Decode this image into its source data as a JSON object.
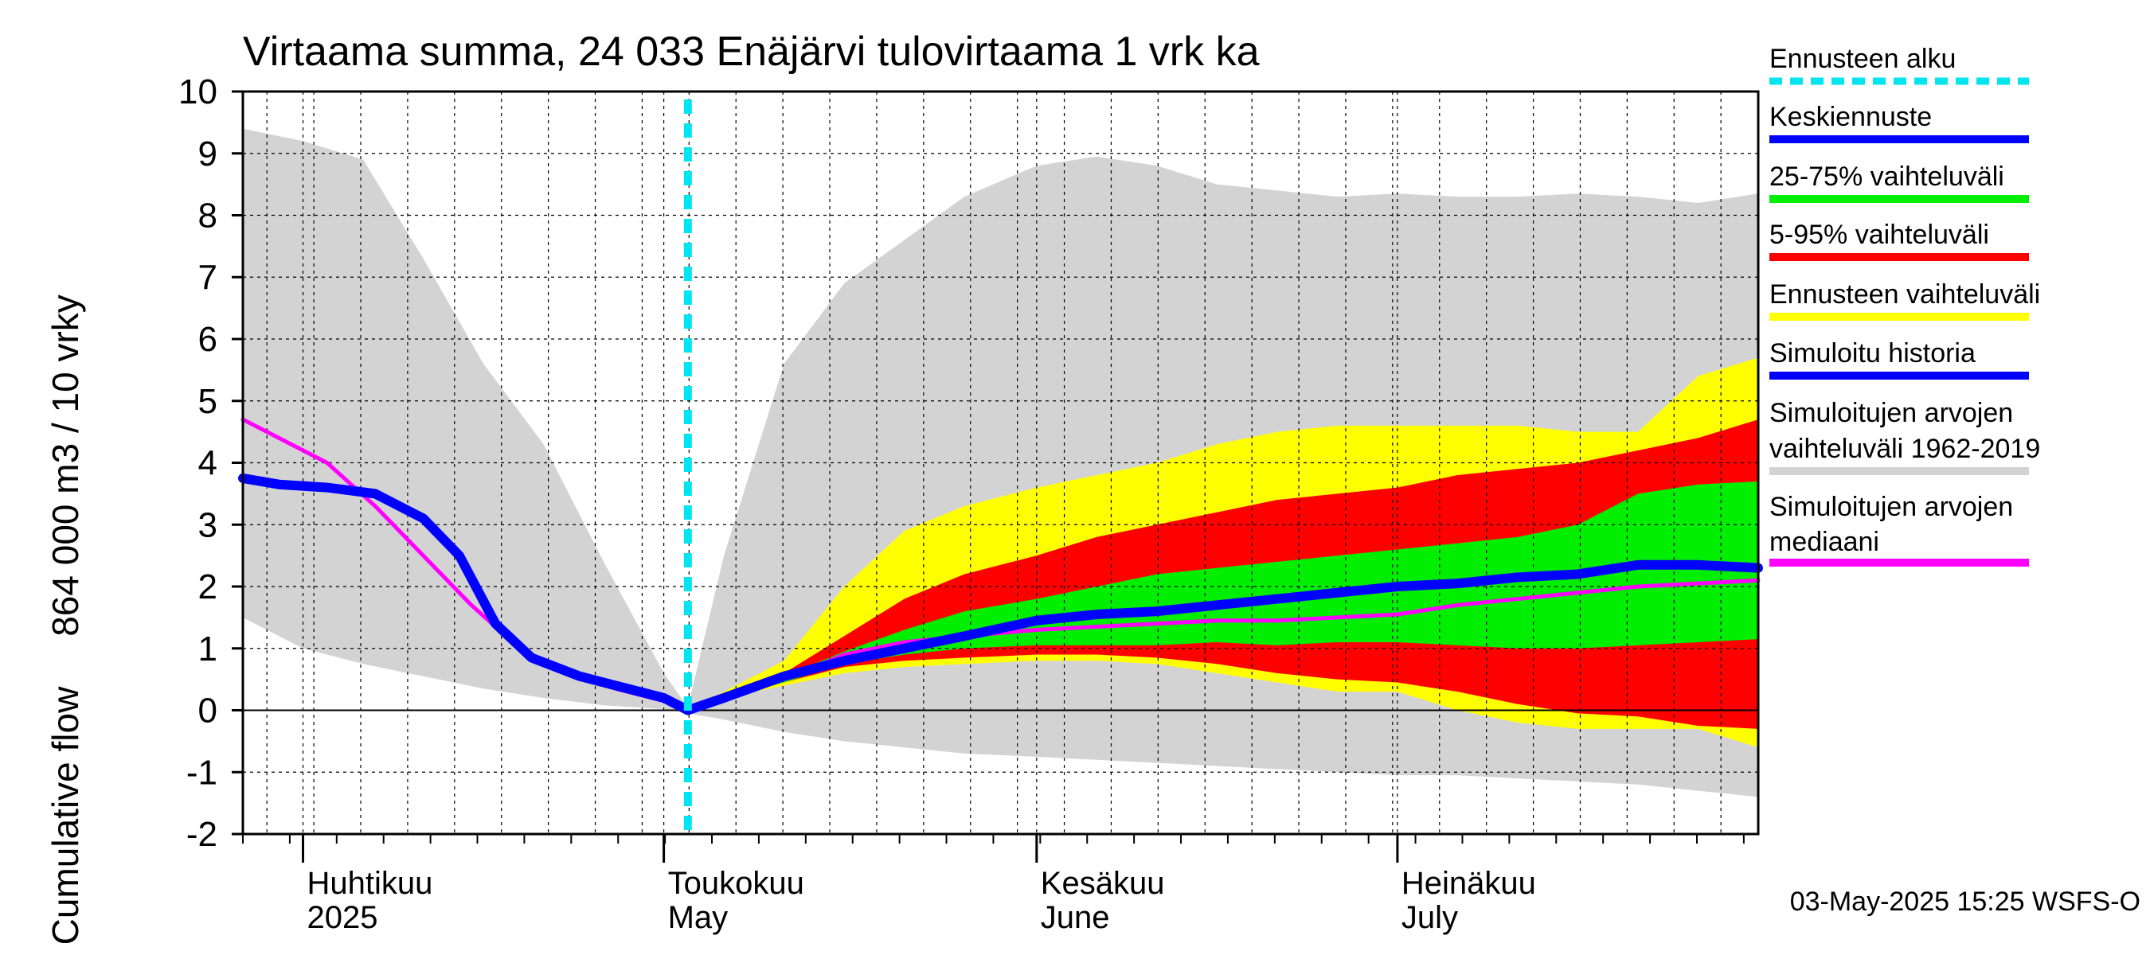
{
  "chart_data": {
    "type": "area",
    "title": "Virtaama summa, 24 033 Enäjärvi tulovirtaama 1 vrk ka",
    "ylabel_top": "864 000 m3 / 10 vrky",
    "ylabel_bottom": "Cumulative flow",
    "ylim": [
      -2,
      10
    ],
    "yticks": [
      "-2",
      "-1",
      "0",
      "1",
      "2",
      "3",
      "4",
      "5",
      "6",
      "7",
      "8",
      "9",
      "10"
    ],
    "x_range": [
      "2025-03-27",
      "2025-07-31"
    ],
    "forecast_start": "2025-05-03",
    "months": [
      {
        "label1": "Huhtikuu",
        "label2": "2025",
        "start": "2025-04-01"
      },
      {
        "label1": "Toukokuu",
        "label2": "May",
        "start": "2025-05-01"
      },
      {
        "label1": "Kesäkuu",
        "label2": "June",
        "start": "2025-06-01"
      },
      {
        "label1": "Heinäkuu",
        "label2": "July",
        "start": "2025-07-01"
      }
    ],
    "grid": true,
    "legend_position": "right",
    "legend": [
      {
        "label": "Ennusteen alku",
        "color": "#00e5ee",
        "style": "dashed"
      },
      {
        "label": "Keskiennuste",
        "color": "#0000ff",
        "style": "line"
      },
      {
        "label": "25-75% vaihteluväli",
        "color": "#00ee00",
        "style": "line"
      },
      {
        "label": "5-95% vaihteluväli",
        "color": "#ff0000",
        "style": "line"
      },
      {
        "label": "Ennusteen vaihteluväli",
        "color": "#ffff00",
        "style": "line"
      },
      {
        "label": "Simuloitu historia",
        "color": "#0000ff",
        "style": "line"
      },
      {
        "label": "Simuloitujen arvojen vaihteluväli 1962-2019",
        "line1": "Simuloitujen arvojen",
        "line2": "vaihteluväli 1962-2019",
        "color": "#d3d3d3",
        "style": "line"
      },
      {
        "label": "Simuloitujen arvojen mediaani",
        "line1": "Simuloitujen arvojen",
        "line2": "mediaani",
        "color": "#ff00ff",
        "style": "line"
      }
    ],
    "series": [
      {
        "name": "Simuloitujen arvojen vaihteluväli 1962-2019",
        "color": "#d3d3d3",
        "kind": "band",
        "x": [
          "2025-03-27",
          "2025-04-01",
          "2025-04-06",
          "2025-04-11",
          "2025-04-16",
          "2025-04-21",
          "2025-04-26",
          "2025-05-01",
          "2025-05-03",
          "2025-05-06",
          "2025-05-11",
          "2025-05-16",
          "2025-05-21",
          "2025-05-26",
          "2025-06-01",
          "2025-06-06",
          "2025-06-11",
          "2025-06-16",
          "2025-06-21",
          "2025-06-26",
          "2025-07-01",
          "2025-07-06",
          "2025-07-11",
          "2025-07-16",
          "2025-07-21",
          "2025-07-26",
          "2025-07-31"
        ],
        "upper": [
          9.4,
          9.2,
          8.9,
          7.3,
          5.6,
          4.3,
          2.4,
          0.6,
          0.05,
          2.5,
          5.6,
          6.9,
          7.6,
          8.3,
          8.8,
          8.95,
          8.8,
          8.5,
          8.4,
          8.3,
          8.35,
          8.3,
          8.3,
          8.35,
          8.3,
          8.2,
          8.35
        ],
        "lower": [
          1.5,
          1.0,
          0.75,
          0.55,
          0.35,
          0.2,
          0.08,
          0.02,
          -0.05,
          -0.15,
          -0.35,
          -0.5,
          -0.6,
          -0.7,
          -0.75,
          -0.8,
          -0.85,
          -0.9,
          -0.95,
          -1.0,
          -1.05,
          -1.05,
          -1.1,
          -1.15,
          -1.2,
          -1.3,
          -1.4
        ]
      },
      {
        "name": "Ennusteen vaihteluväli",
        "color": "#ffff00",
        "kind": "band",
        "x": [
          "2025-05-03",
          "2025-05-06",
          "2025-05-11",
          "2025-05-16",
          "2025-05-21",
          "2025-05-26",
          "2025-06-01",
          "2025-06-06",
          "2025-06-11",
          "2025-06-16",
          "2025-06-21",
          "2025-06-26",
          "2025-07-01",
          "2025-07-06",
          "2025-07-11",
          "2025-07-16",
          "2025-07-21",
          "2025-07-26",
          "2025-07-31"
        ],
        "upper": [
          0.0,
          0.3,
          0.8,
          2.0,
          2.9,
          3.3,
          3.6,
          3.8,
          4.0,
          4.3,
          4.5,
          4.6,
          4.6,
          4.6,
          4.6,
          4.5,
          4.5,
          5.4,
          5.7
        ],
        "lower": [
          0.0,
          0.2,
          0.4,
          0.6,
          0.7,
          0.75,
          0.8,
          0.8,
          0.75,
          0.6,
          0.45,
          0.3,
          0.3,
          0.0,
          -0.2,
          -0.3,
          -0.3,
          -0.3,
          -0.6
        ]
      },
      {
        "name": "5-95% vaihteluväli",
        "color": "#ff0000",
        "kind": "band",
        "x": [
          "2025-05-03",
          "2025-05-06",
          "2025-05-11",
          "2025-05-16",
          "2025-05-21",
          "2025-05-26",
          "2025-06-01",
          "2025-06-06",
          "2025-06-11",
          "2025-06-16",
          "2025-06-21",
          "2025-06-26",
          "2025-07-01",
          "2025-07-06",
          "2025-07-11",
          "2025-07-16",
          "2025-07-21",
          "2025-07-26",
          "2025-07-31"
        ],
        "upper": [
          0.0,
          0.25,
          0.6,
          1.2,
          1.8,
          2.2,
          2.5,
          2.8,
          3.0,
          3.2,
          3.4,
          3.5,
          3.6,
          3.8,
          3.9,
          4.0,
          4.2,
          4.4,
          4.7
        ],
        "lower": [
          0.0,
          0.2,
          0.45,
          0.7,
          0.8,
          0.85,
          0.9,
          0.9,
          0.85,
          0.75,
          0.6,
          0.5,
          0.45,
          0.3,
          0.1,
          -0.05,
          -0.1,
          -0.25,
          -0.3
        ]
      },
      {
        "name": "25-75% vaihteluväli",
        "color": "#00ee00",
        "kind": "band",
        "x": [
          "2025-05-03",
          "2025-05-06",
          "2025-05-11",
          "2025-05-16",
          "2025-05-21",
          "2025-05-26",
          "2025-06-01",
          "2025-06-06",
          "2025-06-11",
          "2025-06-16",
          "2025-06-21",
          "2025-06-26",
          "2025-07-01",
          "2025-07-06",
          "2025-07-11",
          "2025-07-16",
          "2025-07-21",
          "2025-07-26",
          "2025-07-31"
        ],
        "upper": [
          0.0,
          0.22,
          0.55,
          0.95,
          1.3,
          1.6,
          1.8,
          2.0,
          2.2,
          2.3,
          2.4,
          2.5,
          2.6,
          2.7,
          2.8,
          3.0,
          3.5,
          3.65,
          3.7
        ],
        "lower": [
          0.0,
          0.18,
          0.45,
          0.75,
          0.9,
          1.0,
          1.05,
          1.05,
          1.05,
          1.1,
          1.05,
          1.1,
          1.1,
          1.05,
          1.0,
          1.0,
          1.05,
          1.1,
          1.15
        ]
      },
      {
        "name": "Simuloitujen arvojen mediaani",
        "color": "#ff00ff",
        "kind": "line",
        "width": 5,
        "x": [
          "2025-03-27",
          "2025-03-30",
          "2025-04-03",
          "2025-04-07",
          "2025-04-11",
          "2025-04-15",
          "2025-04-19",
          "2025-04-23",
          "2025-04-27",
          "2025-05-01",
          "2025-05-03",
          "2025-05-06",
          "2025-05-11",
          "2025-05-16",
          "2025-05-21",
          "2025-05-26",
          "2025-06-01",
          "2025-06-06",
          "2025-06-11",
          "2025-06-16",
          "2025-06-21",
          "2025-06-26",
          "2025-07-01",
          "2025-07-06",
          "2025-07-11",
          "2025-07-16",
          "2025-07-21",
          "2025-07-26",
          "2025-07-31"
        ],
        "y": [
          4.7,
          4.4,
          4.0,
          3.3,
          2.5,
          1.7,
          1.0,
          0.6,
          0.35,
          0.15,
          0.0,
          0.2,
          0.5,
          0.9,
          1.1,
          1.2,
          1.3,
          1.35,
          1.4,
          1.45,
          1.45,
          1.5,
          1.55,
          1.7,
          1.8,
          1.9,
          2.0,
          2.05,
          2.1
        ]
      },
      {
        "name": "Simuloitu historia",
        "color": "#0000ff",
        "kind": "line",
        "width": 12,
        "x": [
          "2025-03-27",
          "2025-03-30",
          "2025-04-03",
          "2025-04-07",
          "2025-04-11",
          "2025-04-14",
          "2025-04-17",
          "2025-04-20",
          "2025-04-24",
          "2025-04-28",
          "2025-05-01",
          "2025-05-03"
        ],
        "y": [
          3.75,
          3.65,
          3.6,
          3.5,
          3.1,
          2.5,
          1.4,
          0.85,
          0.55,
          0.35,
          0.2,
          0.0
        ]
      },
      {
        "name": "Keskiennuste",
        "color": "#0000ff",
        "kind": "line",
        "width": 12,
        "x": [
          "2025-05-03",
          "2025-05-06",
          "2025-05-11",
          "2025-05-16",
          "2025-05-21",
          "2025-05-26",
          "2025-06-01",
          "2025-06-06",
          "2025-06-11",
          "2025-06-16",
          "2025-06-21",
          "2025-06-26",
          "2025-07-01",
          "2025-07-06",
          "2025-07-11",
          "2025-07-16",
          "2025-07-21",
          "2025-07-26",
          "2025-07-31"
        ],
        "y": [
          0.0,
          0.2,
          0.55,
          0.8,
          1.0,
          1.2,
          1.45,
          1.55,
          1.6,
          1.7,
          1.8,
          1.9,
          2.0,
          2.05,
          2.15,
          2.2,
          2.35,
          2.35,
          2.3
        ]
      }
    ]
  },
  "footer": "03-May-2025 15:25 WSFS-O"
}
